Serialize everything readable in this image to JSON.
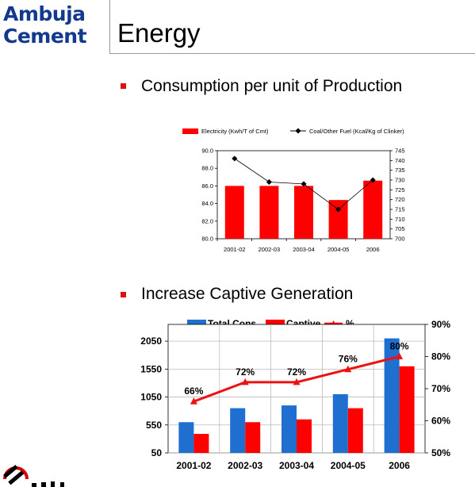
{
  "brand": {
    "line1": "Ambuja",
    "line2": "Cement"
  },
  "page_title": "Energy",
  "bullets": [
    {
      "text": "Consumption per unit of Production"
    },
    {
      "text": "Increase Captive Generation"
    }
  ],
  "colors": {
    "brand_blue": "#13398f",
    "bar_red": "#ff0000",
    "bar_blue": "#1f6fd0",
    "bullet_red": "#e01010"
  },
  "chart_data": [
    {
      "type": "bar",
      "categories": [
        "2001-02",
        "2002-03",
        "2003-04",
        "2004-05",
        "2006"
      ],
      "series": [
        {
          "name": "Electricity (Kwh/T of Cmt)",
          "type": "bar",
          "axis": "left",
          "values": [
            86.0,
            86.0,
            86.0,
            84.4,
            86.6
          ]
        },
        {
          "name": "Coal/Other Fuel (Kcal/Kg of Clinker)",
          "type": "line",
          "axis": "right",
          "values": [
            741,
            729,
            728,
            715,
            730
          ]
        }
      ],
      "left_axis": {
        "min": 80.0,
        "max": 90.0,
        "step": 2.0,
        "ticks": [
          "80.0",
          "82.0",
          "84.0",
          "86.0",
          "88.0",
          "90.0"
        ]
      },
      "right_axis": {
        "min": 700,
        "max": 745,
        "step": 5,
        "ticks": [
          "700",
          "705",
          "710",
          "715",
          "720",
          "725",
          "730",
          "735",
          "740",
          "745"
        ]
      },
      "legend_position": "top",
      "grid": false
    },
    {
      "type": "bar",
      "categories": [
        "2001-02",
        "2002-03",
        "2003-04",
        "2004-05",
        "2006"
      ],
      "series": [
        {
          "name": "Total Cons",
          "type": "bar",
          "axis": "left",
          "values": [
            600,
            850,
            900,
            1100,
            2100
          ]
        },
        {
          "name": "Captive",
          "type": "bar",
          "axis": "left",
          "values": [
            390,
            600,
            650,
            850,
            1600
          ]
        },
        {
          "name": "%",
          "type": "line",
          "axis": "right",
          "values": [
            66,
            72,
            72,
            76,
            80
          ]
        }
      ],
      "data_labels": [
        "66%",
        "72%",
        "72%",
        "76%",
        "80%"
      ],
      "left_axis": {
        "min": 50,
        "max": 2350,
        "ticks": [
          "50",
          "550",
          "1050",
          "1550",
          "2050"
        ]
      },
      "right_axis": {
        "min": 50,
        "max": 90,
        "ticks": [
          "50%",
          "60%",
          "70%",
          "80%",
          "90%"
        ]
      },
      "legend_position": "top",
      "grid": true
    }
  ]
}
